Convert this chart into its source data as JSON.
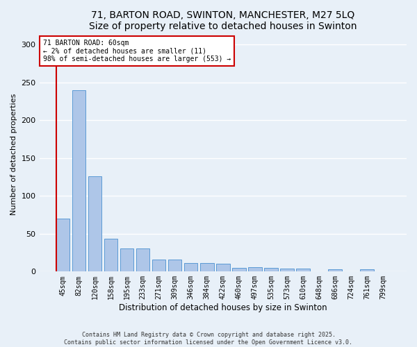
{
  "title_line1": "71, BARTON ROAD, SWINTON, MANCHESTER, M27 5LQ",
  "title_line2": "Size of property relative to detached houses in Swinton",
  "xlabel": "Distribution of detached houses by size in Swinton",
  "ylabel": "Number of detached properties",
  "categories": [
    "45sqm",
    "82sqm",
    "120sqm",
    "158sqm",
    "195sqm",
    "233sqm",
    "271sqm",
    "309sqm",
    "346sqm",
    "384sqm",
    "422sqm",
    "460sqm",
    "497sqm",
    "535sqm",
    "573sqm",
    "610sqm",
    "648sqm",
    "686sqm",
    "724sqm",
    "761sqm",
    "799sqm"
  ],
  "values": [
    70,
    240,
    126,
    43,
    31,
    31,
    16,
    16,
    11,
    11,
    10,
    5,
    6,
    5,
    4,
    4,
    0,
    3,
    0,
    3,
    0
  ],
  "bar_color": "#aec6e8",
  "bar_edge_color": "#5b9bd5",
  "annotation_box_color": "#ffffff",
  "annotation_box_edge": "#cc0000",
  "vline_color": "#cc0000",
  "annotation_text_line1": "71 BARTON ROAD: 60sqm",
  "annotation_text_line2": "← 2% of detached houses are smaller (11)",
  "annotation_text_line3": "98% of semi-detached houses are larger (553) →",
  "footer_line1": "Contains HM Land Registry data © Crown copyright and database right 2025.",
  "footer_line2": "Contains public sector information licensed under the Open Government Licence v3.0.",
  "ylim": [
    0,
    310
  ],
  "yticks": [
    0,
    50,
    100,
    150,
    200,
    250,
    300
  ],
  "background_color": "#e8f0f8",
  "grid_color": "#ffffff",
  "title_fontsize": 10,
  "ylabel_fontsize": 8,
  "xlabel_fontsize": 8.5,
  "tick_fontsize": 7,
  "ann_fontsize": 7,
  "footer_fontsize": 6
}
